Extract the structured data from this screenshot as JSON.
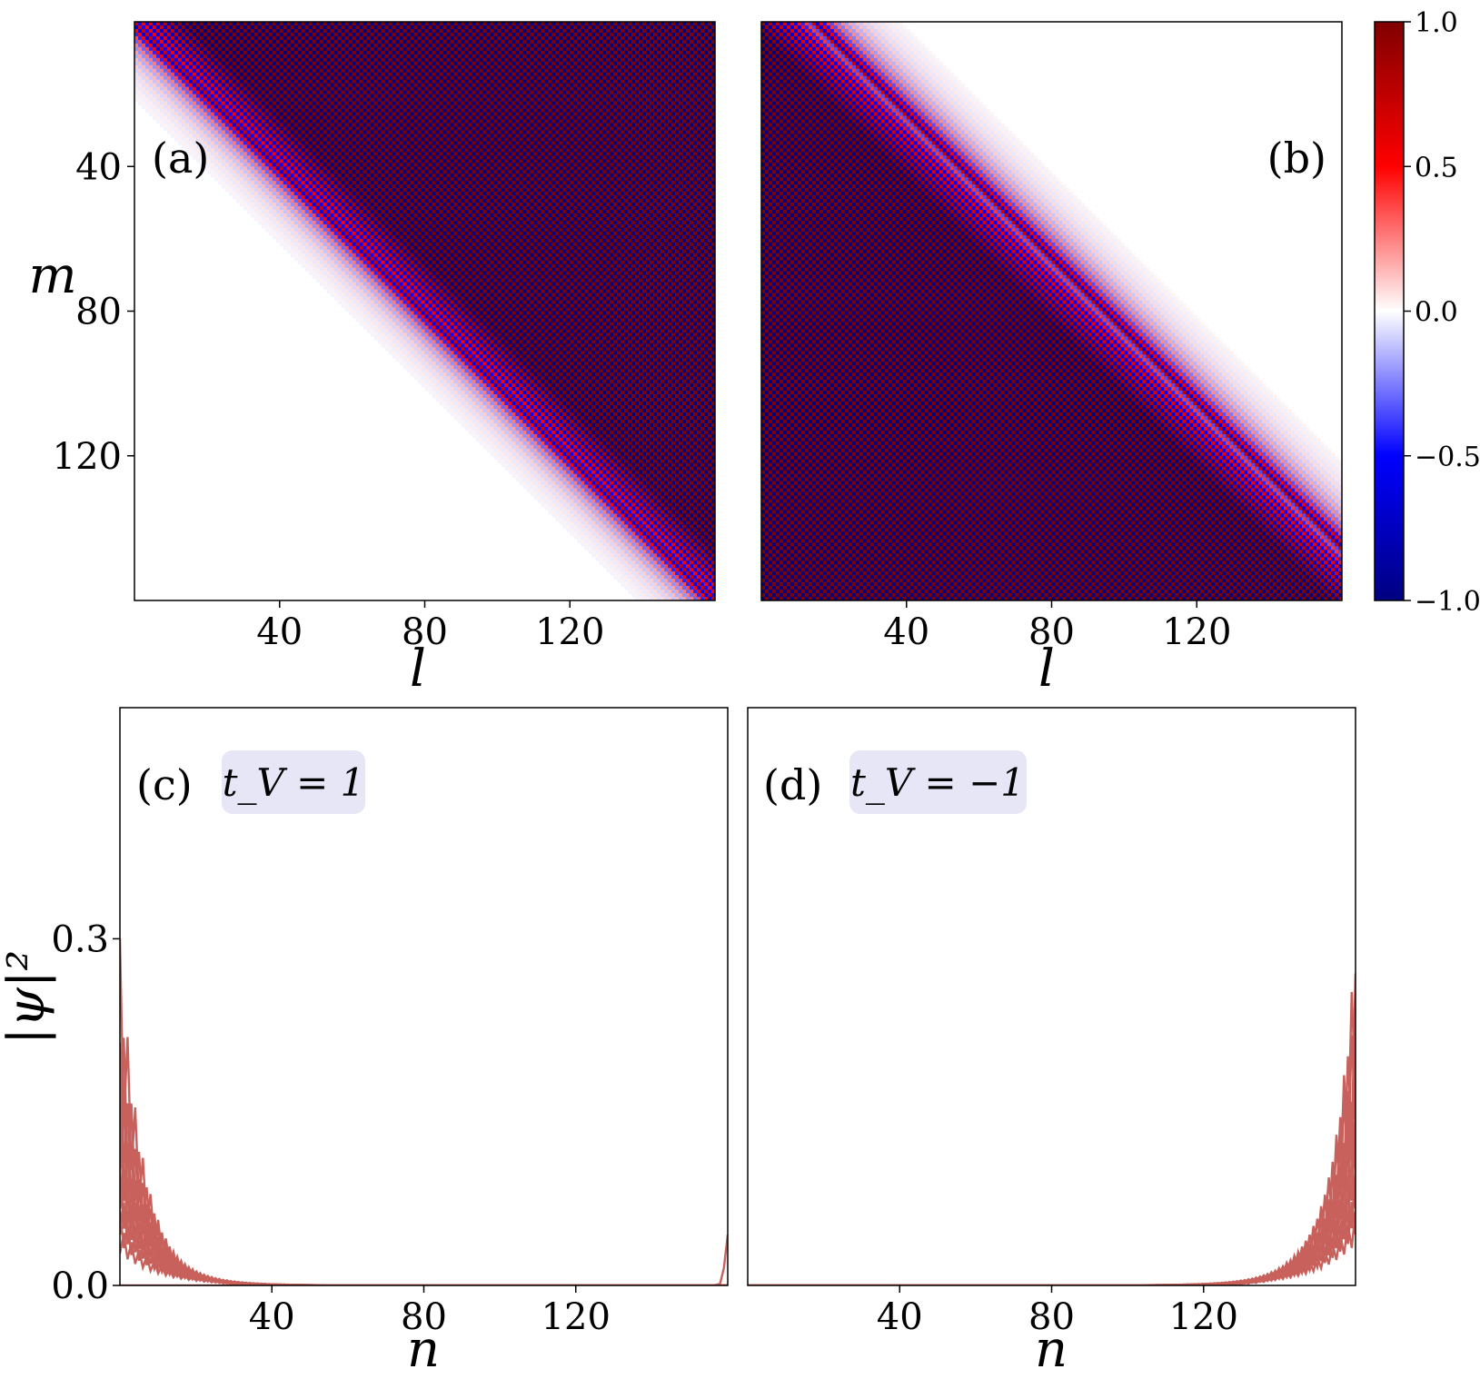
{
  "figure": {
    "panels": {
      "a": {
        "label": "(a)"
      },
      "b": {
        "label": "(b)"
      },
      "c": {
        "label": "(c)",
        "annotation": "t_V = 1"
      },
      "d": {
        "label": "(d)",
        "annotation": "t_V = −1"
      }
    },
    "colorbar": {
      "tick_labels": [
        "1.0",
        "0.5",
        "0.0",
        "−0.5",
        "−1.0"
      ],
      "colors": {
        "max": "#800000",
        "mid_high": "#ff0000",
        "zero": "#ffffff",
        "mid_low": "#0000ff",
        "min": "#000080"
      }
    },
    "line_color": "#c8605c",
    "annotation_box_color": "#e6e6f7"
  },
  "chart_data": [
    {
      "panel": "a",
      "type": "heatmap",
      "xlabel": "l",
      "ylabel": "m",
      "xlim": [
        0,
        160
      ],
      "ylim": [
        160,
        0
      ],
      "xticks": [
        40,
        80,
        120
      ],
      "yticks": [
        40,
        80,
        120
      ],
      "colormap": "seismic",
      "vlim": [
        -1.0,
        1.0
      ],
      "pattern": "alternating ±1 checkerboard above diagonal band, decaying fringe below"
    },
    {
      "panel": "b",
      "type": "heatmap",
      "xlabel": "l",
      "ylabel": "",
      "xlim": [
        0,
        160
      ],
      "ylim": [
        160,
        0
      ],
      "xticks": [
        40,
        80,
        120
      ],
      "yticks": [],
      "colormap": "seismic",
      "vlim": [
        -1.0,
        1.0
      ],
      "pattern": "alternating ±1 checkerboard below diagonal band, decaying fringe above"
    },
    {
      "panel": "c",
      "type": "line",
      "xlabel": "n",
      "ylabel": "|ψ|²",
      "xlim": [
        0,
        160
      ],
      "ylim": [
        0,
        0.5
      ],
      "xticks": [
        40,
        80,
        120
      ],
      "yticks": [
        0.0,
        0.3
      ],
      "ytick_labels": [
        "0.0",
        "0.3"
      ],
      "series": [
        {
          "peaks": [
            0.3,
            0.25,
            0.21,
            0.18,
            0.15,
            0.12,
            0.1,
            0.08,
            0.065,
            0.05
          ],
          "decay_length": 6.0,
          "localized_at": "left edge"
        },
        {
          "peaks": [
            0.08
          ],
          "decay_length": 0.6,
          "localized_at": "right edge"
        }
      ]
    },
    {
      "panel": "d",
      "type": "line",
      "xlabel": "n",
      "ylabel": "",
      "xlim": [
        0,
        160
      ],
      "ylim": [
        0,
        0.5
      ],
      "xticks": [
        40,
        80,
        120
      ],
      "yticks": [],
      "series": [
        {
          "peaks": [
            0.3,
            0.27,
            0.25,
            0.22,
            0.18,
            0.15,
            0.12,
            0.1,
            0.08,
            0.065
          ],
          "decay_length": 6.0,
          "localized_at": "right edge"
        }
      ]
    }
  ]
}
